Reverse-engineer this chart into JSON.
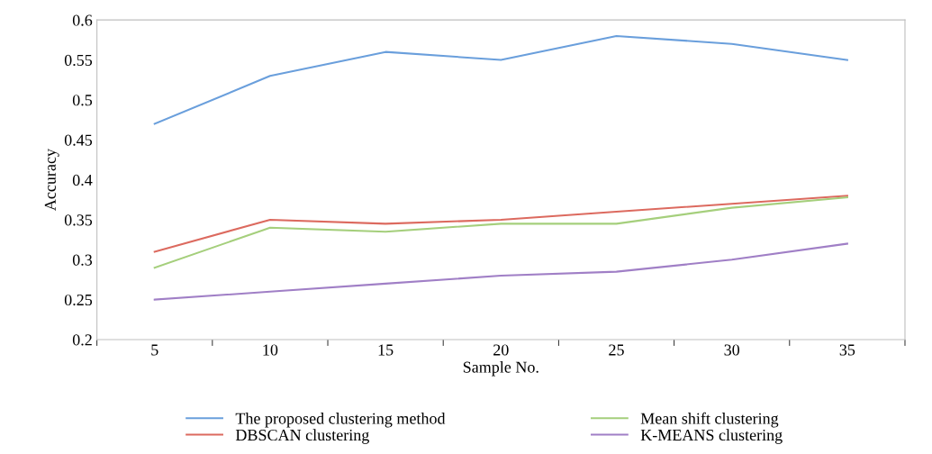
{
  "chart_data": {
    "type": "line",
    "xlabel": "Sample No.",
    "ylabel": "Accuracy",
    "categories": [
      "5",
      "10",
      "15",
      "20",
      "25",
      "30",
      "35"
    ],
    "series": [
      {
        "name": "The proposed clustering method",
        "color": "#6a9fdc",
        "values": [
          0.47,
          0.53,
          0.56,
          0.55,
          0.58,
          0.57,
          0.55
        ]
      },
      {
        "name": "DBSCAN clustering",
        "color": "#dc6a5f",
        "values": [
          0.31,
          0.35,
          0.345,
          0.35,
          0.36,
          0.37,
          0.38
        ]
      },
      {
        "name": "Mean shift clustering",
        "color": "#a5cf7c",
        "values": [
          0.29,
          0.34,
          0.335,
          0.345,
          0.345,
          0.365,
          0.378
        ]
      },
      {
        "name": "K-MEANS clustering",
        "color": "#a07fc6",
        "values": [
          0.25,
          0.26,
          0.27,
          0.28,
          0.285,
          0.3,
          0.32
        ]
      }
    ],
    "ylim": [
      0.2,
      0.6
    ],
    "yticks": [
      0.2,
      0.25,
      0.3,
      0.35,
      0.4,
      0.45,
      0.5,
      0.55,
      0.6
    ],
    "grid": false,
    "legend": "bottom",
    "marker": "none",
    "line_style": "solid"
  }
}
